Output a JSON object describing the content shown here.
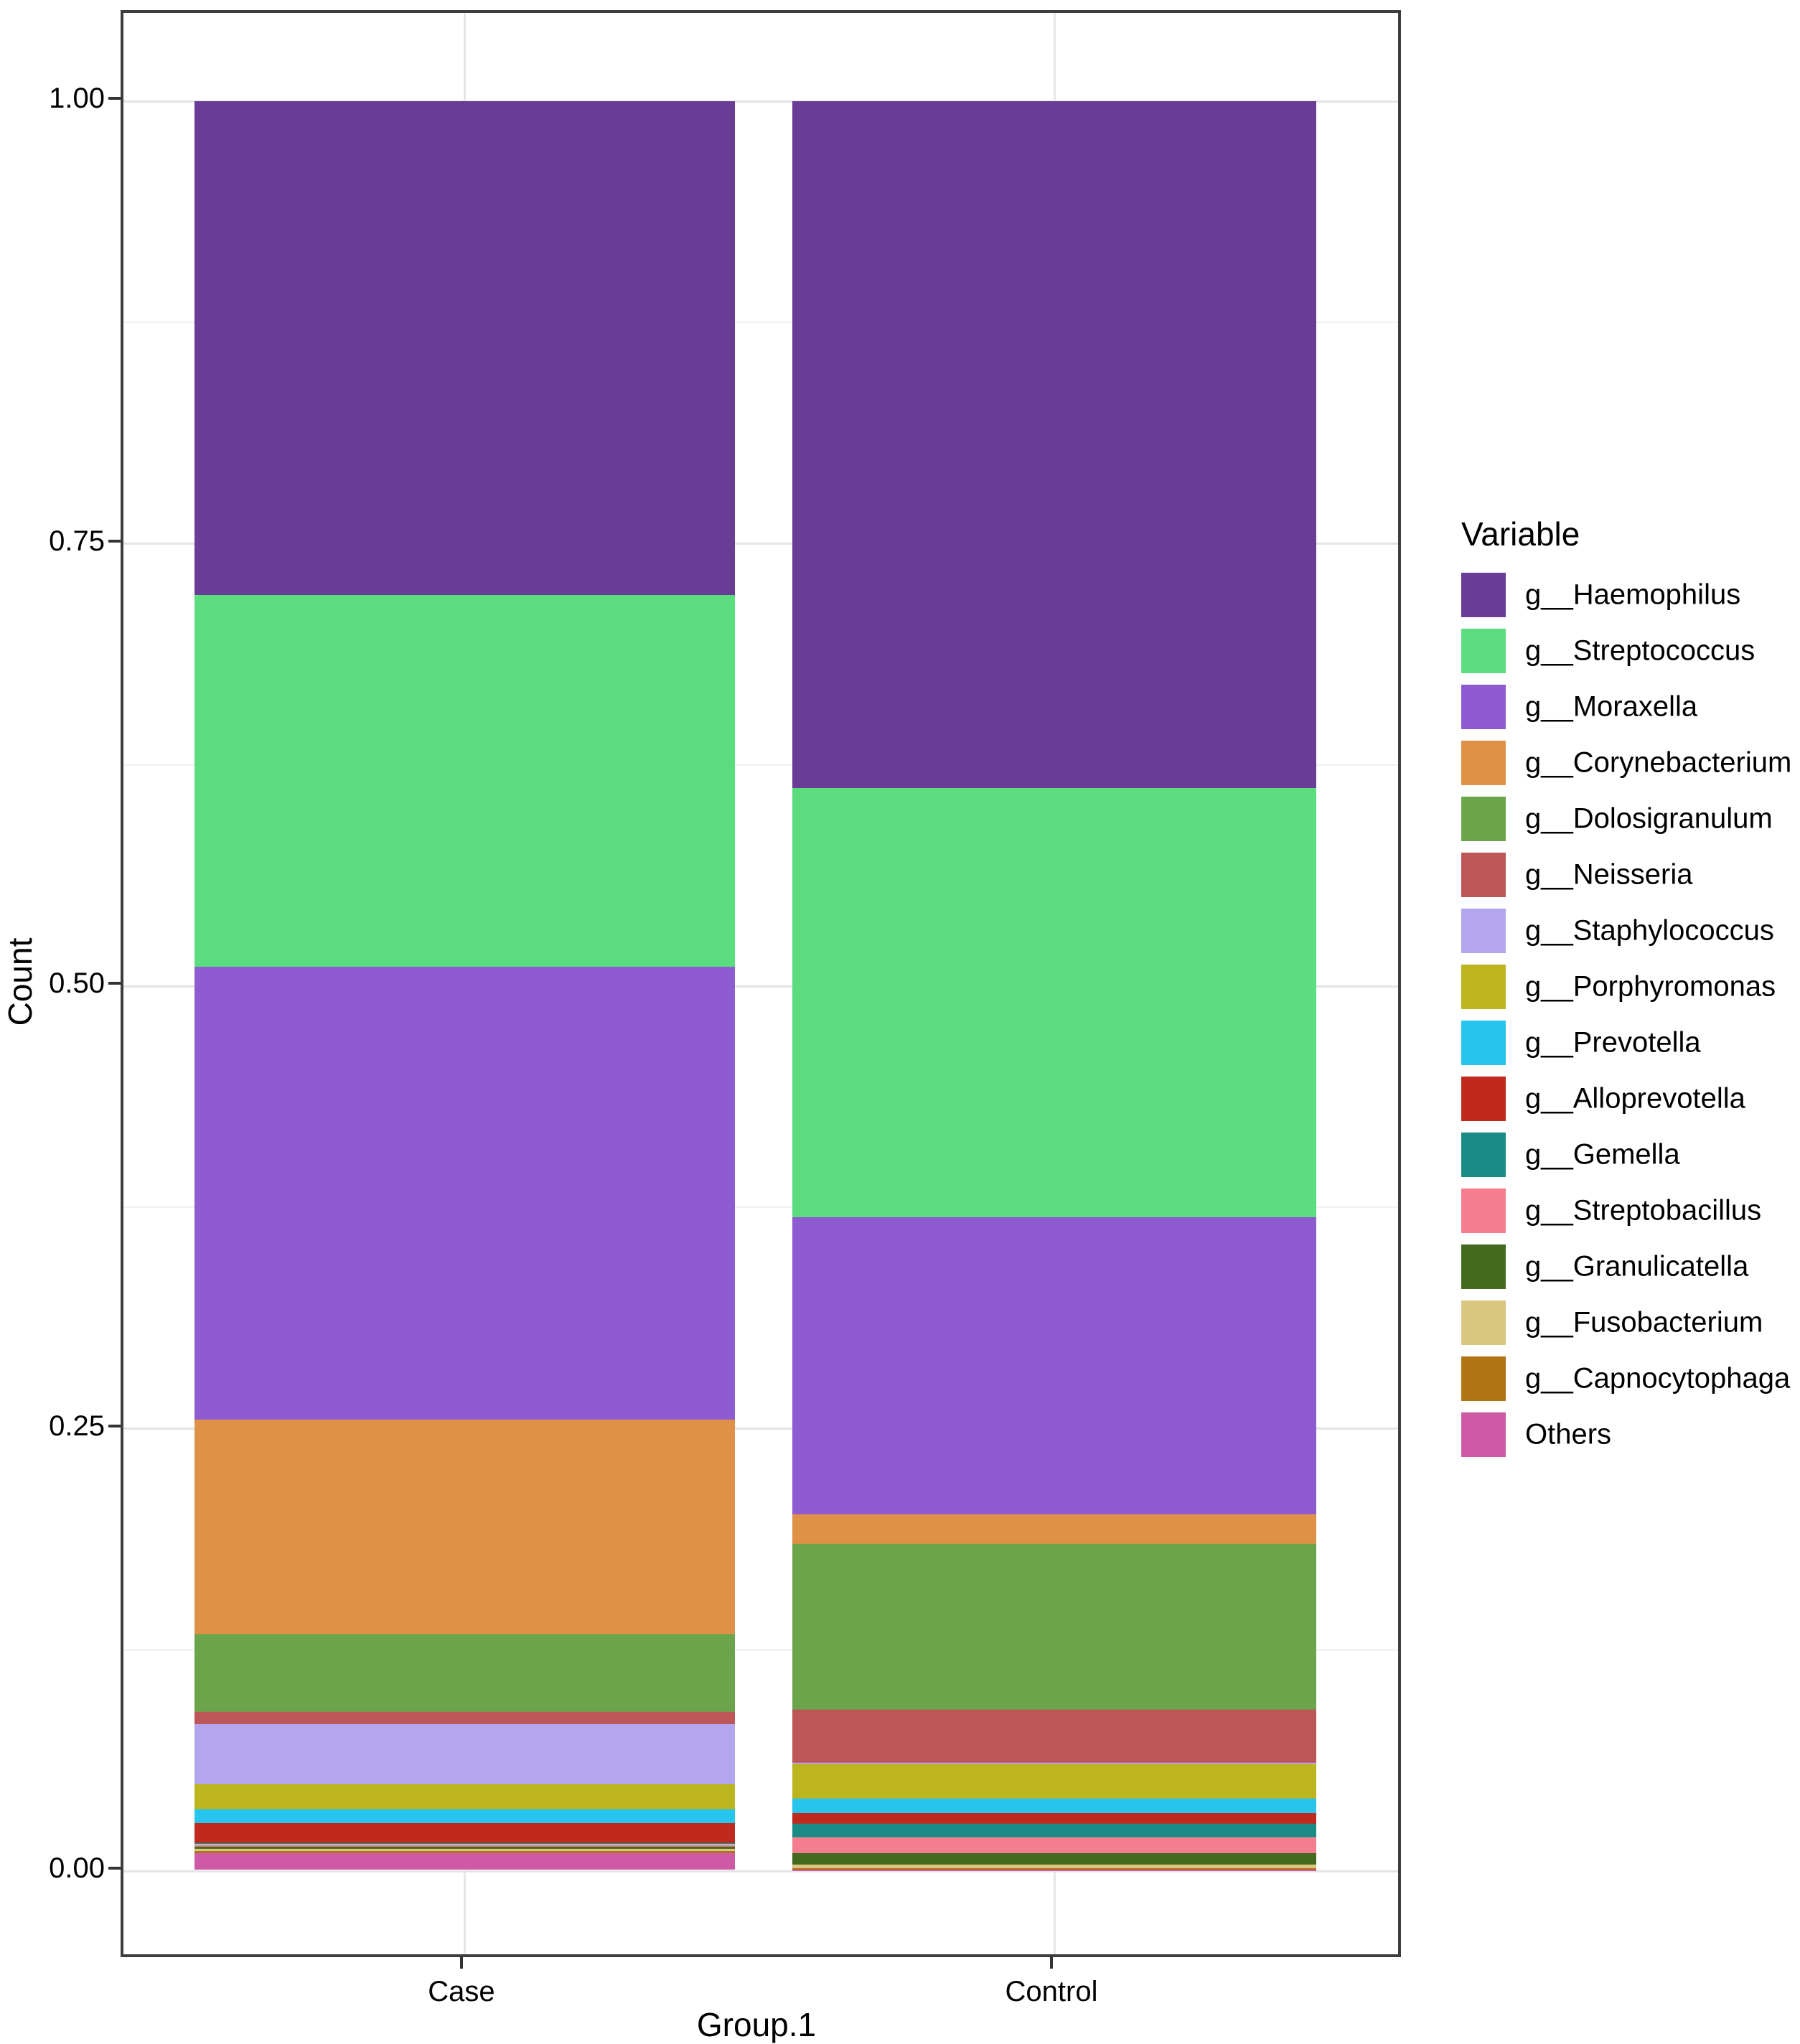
{
  "figure": {
    "y_axis": {
      "title": "Count",
      "ticks": [
        "1.00",
        "0.75",
        "0.50",
        "0.25",
        "0.00"
      ],
      "tick_values": [
        1.0,
        0.75,
        0.5,
        0.25,
        0.0
      ]
    },
    "x_axis": {
      "title": "Group.1",
      "categories": [
        "Case",
        "Control"
      ]
    },
    "legend": {
      "title": "Variable"
    },
    "colors": {
      "panel_border": "#3d3d3d",
      "major_gridline": "#e4e4e4",
      "minor_gridline": "#f1f1f1",
      "background": "#ffffff"
    }
  },
  "chart_data": {
    "type": "bar",
    "stacked": true,
    "normalized": true,
    "xlabel": "Group.1",
    "ylabel": "Count",
    "ylim": [
      0,
      1
    ],
    "grid": true,
    "legend_position": "right",
    "categories": [
      "Case",
      "Control"
    ],
    "minor_gridlines": [
      0.125,
      0.375,
      0.625,
      0.875
    ],
    "major_gridlines": [
      0.0,
      0.25,
      0.5,
      0.75,
      1.0
    ],
    "series": [
      {
        "name": "g__Haemophilus",
        "color": "#693C96",
        "values": [
          0.279,
          0.388
        ]
      },
      {
        "name": "g__Streptococcus",
        "color": "#5BDC7E",
        "values": [
          0.21,
          0.2425
        ]
      },
      {
        "name": "g__Moraxella",
        "color": "#8E5BD1",
        "values": [
          0.256,
          0.168
        ]
      },
      {
        "name": "g__Corynebacterium",
        "color": "#DE9147",
        "values": [
          0.121,
          0.0165
        ]
      },
      {
        "name": "g__Dolosigranulum",
        "color": "#6CA44C",
        "values": [
          0.044,
          0.0938
        ]
      },
      {
        "name": "g__Neisseria",
        "color": "#BD5757",
        "values": [
          0.007,
          0.0299
        ]
      },
      {
        "name": "g__Staphylococcus",
        "color": "#B3A5EE",
        "values": [
          0.034,
          0.001
        ]
      },
      {
        "name": "g__Porphyromonas",
        "color": "#BCB51F",
        "values": [
          0.014,
          0.0193
        ]
      },
      {
        "name": "g__Prevotella",
        "color": "#27C5EE",
        "values": [
          0.008,
          0.0081
        ]
      },
      {
        "name": "g__Alloprevotella",
        "color": "#C02A1E",
        "values": [
          0.011,
          0.0061
        ]
      },
      {
        "name": "g__Gemella",
        "color": "#198D85",
        "values": [
          0.0012,
          0.0077
        ]
      },
      {
        "name": "g__Streptobacillus",
        "color": "#F67D90",
        "values": [
          0.0012,
          0.0089
        ]
      },
      {
        "name": "g__Granulicatella",
        "color": "#436B20",
        "values": [
          0.001,
          0.0065
        ]
      },
      {
        "name": "g__Fusobacterium",
        "color": "#DAC77F",
        "values": [
          0.0011,
          0.0022
        ]
      },
      {
        "name": "g__Capnocytophaga",
        "color": "#AF7514",
        "values": [
          0.0012,
          0.0008
        ]
      },
      {
        "name": "Others",
        "color": "#CE5AA5",
        "values": [
          0.0095,
          0.0007
        ]
      }
    ]
  }
}
